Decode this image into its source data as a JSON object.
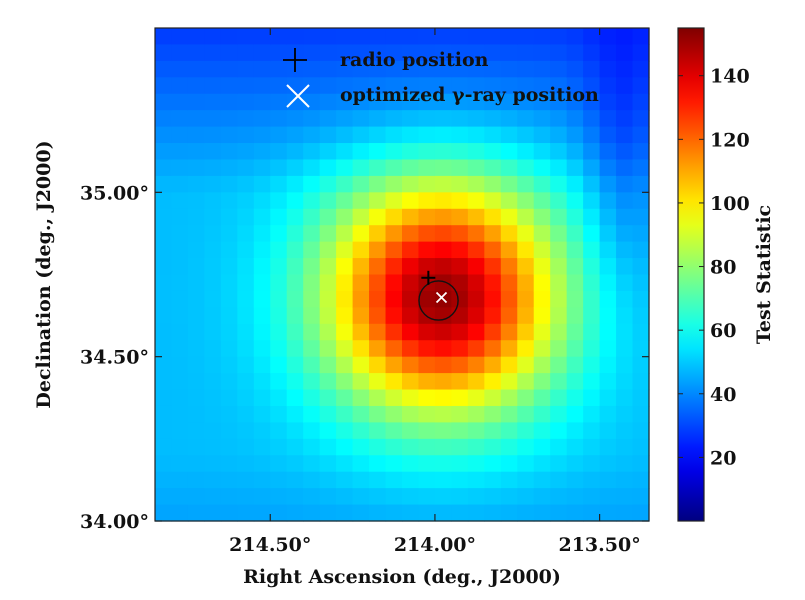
{
  "chart_data": {
    "type": "heatmap",
    "xlabel": "Right Ascension (deg., J2000)",
    "ylabel": "Declination (deg., J2000)",
    "xlim": [
      214.85,
      213.35
    ],
    "ylim": [
      34.0,
      35.5
    ],
    "x_ticks": [
      {
        "value": 214.5,
        "label": "214.50°"
      },
      {
        "value": 214.0,
        "label": "214.00°"
      },
      {
        "value": 213.5,
        "label": "213.50°"
      }
    ],
    "y_ticks": [
      {
        "value": 34.0,
        "label": "34.00°"
      },
      {
        "value": 34.5,
        "label": "34.50°"
      },
      {
        "value": 35.0,
        "label": "35.00°"
      }
    ],
    "grid": false,
    "colormap": "jet",
    "colorbar": {
      "label": "Test Statistic",
      "range": [
        0,
        155
      ],
      "ticks": [
        {
          "value": 20,
          "label": "20"
        },
        {
          "value": 40,
          "label": "40"
        },
        {
          "value": 60,
          "label": "60"
        },
        {
          "value": 80,
          "label": "80"
        },
        {
          "value": 100,
          "label": "100"
        },
        {
          "value": 120,
          "label": "120"
        },
        {
          "value": 140,
          "label": "140"
        }
      ]
    },
    "peak": {
      "ra": 213.98,
      "dec": 34.68,
      "ts": 150
    },
    "radio_position": {
      "ra": 214.02,
      "dec": 34.74
    },
    "optimized_position": {
      "ra": 213.98,
      "dec": 34.68
    },
    "error_circle_radius_deg": 0.09,
    "legend": {
      "placement": "top-center",
      "entries": [
        {
          "label": "radio position",
          "marker": "plus",
          "color": "#000000"
        },
        {
          "label": "optimized γ-ray position",
          "marker": "x",
          "color": "#ffffff"
        }
      ]
    }
  }
}
